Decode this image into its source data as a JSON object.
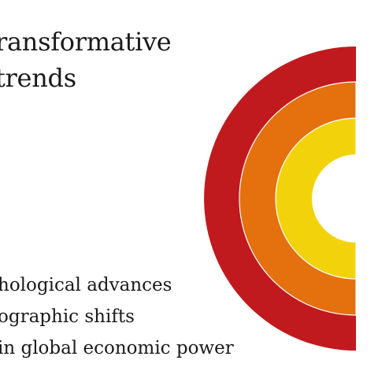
{
  "title": {
    "line1": "ransformative",
    "line2": "trends"
  },
  "trends": [
    {
      "label": "hological advances",
      "color": "#c11a1e"
    },
    {
      "label": "ographic shifts",
      "color": "#e4700e"
    },
    {
      "label": "in global economic power",
      "color": "#f2d30b"
    }
  ],
  "colors": {
    "background": "#ffffff",
    "text": "#1a1a1a",
    "divider": "#ffffff"
  }
}
